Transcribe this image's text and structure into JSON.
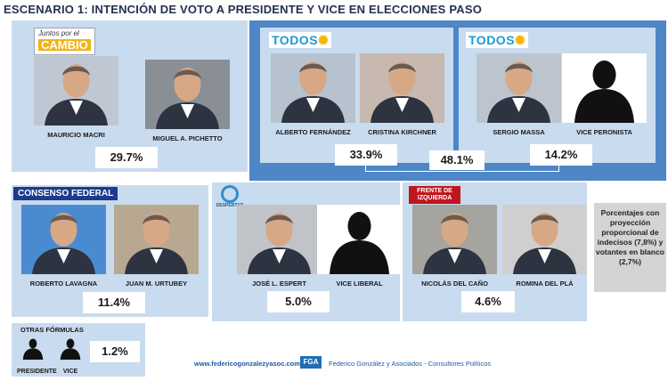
{
  "title": "ESCENARIO 1: INTENCIÓN DE VOTO A PRESIDENTE Y VICE EN ELECCIONES PASO",
  "colors": {
    "panel": "#c9dbee",
    "panel_dark": "#4f86c6",
    "title": "#23314f",
    "accent_blue": "#1b5aa8"
  },
  "juntos": {
    "logo_top": "Juntos por el",
    "logo_main": "CAMBIO",
    "president": "MAURICIO MACRI",
    "vice": "MIGUEL A. PICHETTO",
    "pct": "29.7%"
  },
  "todos": {
    "logo": "TODOS",
    "group_pct": "48.1%",
    "fernandez": {
      "president": "ALBERTO FERNÁNDEZ",
      "vice": "CRISTINA KIRCHNER",
      "pct": "33.9%"
    },
    "massa": {
      "president": "SERGIO MASSA",
      "vice": "VICE PERONISTA",
      "pct": "14.2%"
    }
  },
  "consenso": {
    "logo": "CONSENSO FEDERAL",
    "president": "ROBERTO LAVAGNA",
    "vice": "JUAN M. URTUBEY",
    "pct": "11.4%"
  },
  "espert": {
    "logo": "DESPERTAR",
    "president": "JOSÉ L. ESPERT",
    "vice": "VICE LIBERAL",
    "pct": "5.0%"
  },
  "frente": {
    "logo": "FRENTE DE IZQUIERDA",
    "president": "NICOLÁS DEL CAÑO",
    "vice": "ROMINA DEL PLÁ",
    "pct": "4.6%"
  },
  "otras": {
    "title": "OTRAS FÓRMULAS",
    "president": "PRESIDENTE",
    "vice": "VICE",
    "pct": "1.2%"
  },
  "note": "Porcentajes con proyección proporcional de indecisos (7,8%) y votantes en blanco (2,7%)",
  "footer": {
    "url": "www.federicogonzalezyasoc.com",
    "logo": "FGA",
    "firm": "Federico González y Asociados - Consultores Políticos"
  }
}
